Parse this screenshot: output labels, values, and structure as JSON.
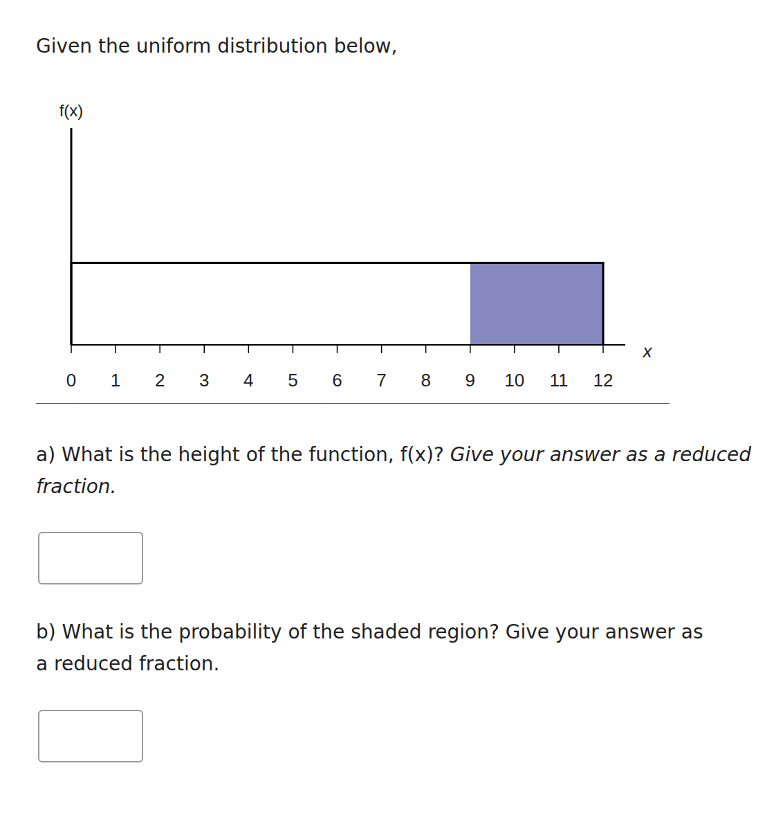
{
  "header": {
    "title": "Given the uniform distribution below,"
  },
  "chart_data": {
    "type": "uniform",
    "y_label": "f(x)",
    "x_label": "x",
    "x": [
      0,
      12
    ],
    "values": [
      0.0833,
      0.0833
    ],
    "shaded_x": [
      9,
      12
    ],
    "color": "#8888c0",
    "xlim": [
      0,
      12.5
    ],
    "xticks": [
      0,
      1,
      2,
      3,
      4,
      5,
      6,
      7,
      8,
      9,
      10,
      11,
      12
    ],
    "ylim": [
      0,
      0.22
    ],
    "tick_labels": "x"
  },
  "questions": [
    {
      "prompt": "a) What is the height of the function, f(x)?",
      "instruction": "Give your answer as a reduced fraction."
    },
    {
      "prompt": "b) What is the probability of the shaded region? Give your answer as a reduced fraction."
    }
  ]
}
